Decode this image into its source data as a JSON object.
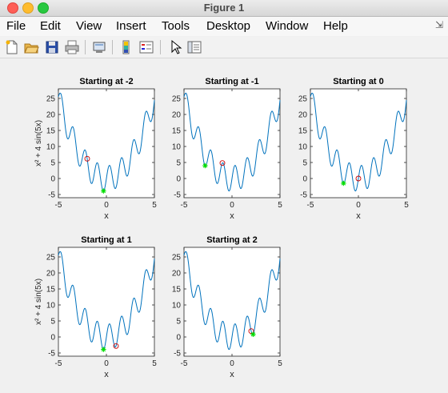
{
  "window": {
    "title": "Figure 1"
  },
  "menu": [
    "File",
    "Edit",
    "View",
    "Insert",
    "Tools",
    "Desktop",
    "Window",
    "Help"
  ],
  "toolbar_icons": [
    "new-figure-icon",
    "open-file-icon",
    "save-icon",
    "print-icon",
    "link-icon",
    "colorbar-icon",
    "legend-icon",
    "pointer-icon",
    "property-editor-icon"
  ],
  "colors": {
    "curve": "#0072bd",
    "start": "#cc0000",
    "end": "#00dd00"
  },
  "shared": {
    "ylabel": "x² + 4 sin(5x)",
    "xlabel": "x"
  },
  "chart_data": [
    {
      "type": "line",
      "title": "Starting at -2",
      "xlim": [
        -5,
        5
      ],
      "ylim": [
        -6,
        28
      ],
      "xticks": [
        "-5",
        "0",
        "5"
      ],
      "yticks": [
        "25",
        "20",
        "15",
        "10",
        "5",
        "0",
        "-5"
      ],
      "xlabel": "x",
      "ylabel": "x² + 4 sin(5x)",
      "function": "x^2 + 4*sin(5*x)",
      "start_point": {
        "x": -2,
        "y": 6.18
      },
      "end_point": {
        "x": -0.3,
        "y": -3.9
      }
    },
    {
      "type": "line",
      "title": "Starting at -1",
      "xlim": [
        -5,
        5
      ],
      "ylim": [
        -6,
        28
      ],
      "xticks": [
        "-5",
        "0",
        "5"
      ],
      "yticks": [
        "25",
        "20",
        "15",
        "10",
        "5",
        "0",
        "-5"
      ],
      "xlabel": "x",
      "ylabel": "",
      "function": "x^2 + 4*sin(5*x)",
      "start_point": {
        "x": -1,
        "y": 4.84
      },
      "end_point": {
        "x": -2.8,
        "y": 4.0
      }
    },
    {
      "type": "line",
      "title": "Starting at 0",
      "xlim": [
        -5,
        5
      ],
      "ylim": [
        -6,
        28
      ],
      "xticks": [
        "-5",
        "0",
        "5"
      ],
      "yticks": [
        "25",
        "20",
        "15",
        "10",
        "5",
        "0",
        "-5"
      ],
      "xlabel": "x",
      "ylabel": "",
      "function": "x^2 + 4*sin(5*x)",
      "start_point": {
        "x": 0,
        "y": 0
      },
      "end_point": {
        "x": -1.55,
        "y": -1.5
      }
    },
    {
      "type": "line",
      "title": "Starting at 1",
      "xlim": [
        -5,
        5
      ],
      "ylim": [
        -6,
        28
      ],
      "xticks": [
        "-5",
        "0",
        "5"
      ],
      "yticks": [
        "25",
        "20",
        "15",
        "10",
        "5",
        "0",
        "-5"
      ],
      "xlabel": "x",
      "ylabel": "x² + 4 sin(5x)",
      "function": "x^2 + 4*sin(5*x)",
      "start_point": {
        "x": 1,
        "y": -2.84
      },
      "end_point": {
        "x": -0.3,
        "y": -3.9
      }
    },
    {
      "type": "line",
      "title": "Starting at 2",
      "xlim": [
        -5,
        5
      ],
      "ylim": [
        -6,
        28
      ],
      "xticks": [
        "-5",
        "0",
        "5"
      ],
      "yticks": [
        "25",
        "20",
        "15",
        "10",
        "5",
        "0",
        "-5"
      ],
      "xlabel": "x",
      "ylabel": "",
      "function": "x^2 + 4*sin(5*x)",
      "start_point": {
        "x": 2,
        "y": 1.82
      },
      "end_point": {
        "x": 2.2,
        "y": 0.8
      }
    }
  ]
}
